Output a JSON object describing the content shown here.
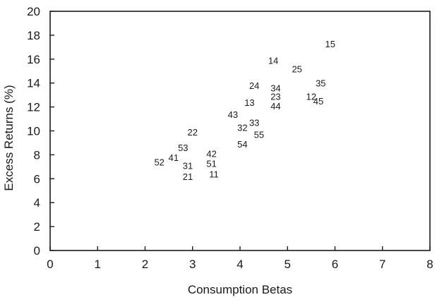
{
  "chart_data": {
    "type": "scatter",
    "title": "",
    "xlabel": "Consumption Betas",
    "ylabel": "Excess Returns (%)",
    "xlim": [
      0,
      8
    ],
    "ylim": [
      0,
      20
    ],
    "xticks": [
      "0",
      "1",
      "2",
      "3",
      "4",
      "5",
      "6",
      "7",
      "8"
    ],
    "yticks": [
      "0",
      "2",
      "4",
      "6",
      "8",
      "10",
      "12",
      "14",
      "16",
      "18",
      "20"
    ],
    "grid": false,
    "marker": "label",
    "points": [
      {
        "label": "15",
        "x": 5.9,
        "y": 17.3
      },
      {
        "label": "14",
        "x": 4.7,
        "y": 15.9
      },
      {
        "label": "25",
        "x": 5.2,
        "y": 15.2
      },
      {
        "label": "35",
        "x": 5.7,
        "y": 14.0
      },
      {
        "label": "24",
        "x": 4.3,
        "y": 13.8
      },
      {
        "label": "34",
        "x": 4.75,
        "y": 13.6
      },
      {
        "label": "23",
        "x": 4.75,
        "y": 12.9
      },
      {
        "label": "12",
        "x": 5.5,
        "y": 12.9
      },
      {
        "label": "45",
        "x": 5.65,
        "y": 12.5
      },
      {
        "label": "13",
        "x": 4.2,
        "y": 12.4
      },
      {
        "label": "44",
        "x": 4.75,
        "y": 12.1
      },
      {
        "label": "43",
        "x": 3.85,
        "y": 11.4
      },
      {
        "label": "33",
        "x": 4.3,
        "y": 10.7
      },
      {
        "label": "32",
        "x": 4.05,
        "y": 10.3
      },
      {
        "label": "55",
        "x": 4.4,
        "y": 9.7
      },
      {
        "label": "22",
        "x": 3.0,
        "y": 9.9
      },
      {
        "label": "54",
        "x": 4.05,
        "y": 8.9
      },
      {
        "label": "53",
        "x": 2.8,
        "y": 8.6
      },
      {
        "label": "42",
        "x": 3.4,
        "y": 8.1
      },
      {
        "label": "41",
        "x": 2.6,
        "y": 7.8
      },
      {
        "label": "52",
        "x": 2.3,
        "y": 7.4
      },
      {
        "label": "51",
        "x": 3.4,
        "y": 7.3
      },
      {
        "label": "31",
        "x": 2.9,
        "y": 7.1
      },
      {
        "label": "21",
        "x": 2.9,
        "y": 6.2
      },
      {
        "label": "11",
        "x": 3.45,
        "y": 6.4
      }
    ]
  }
}
